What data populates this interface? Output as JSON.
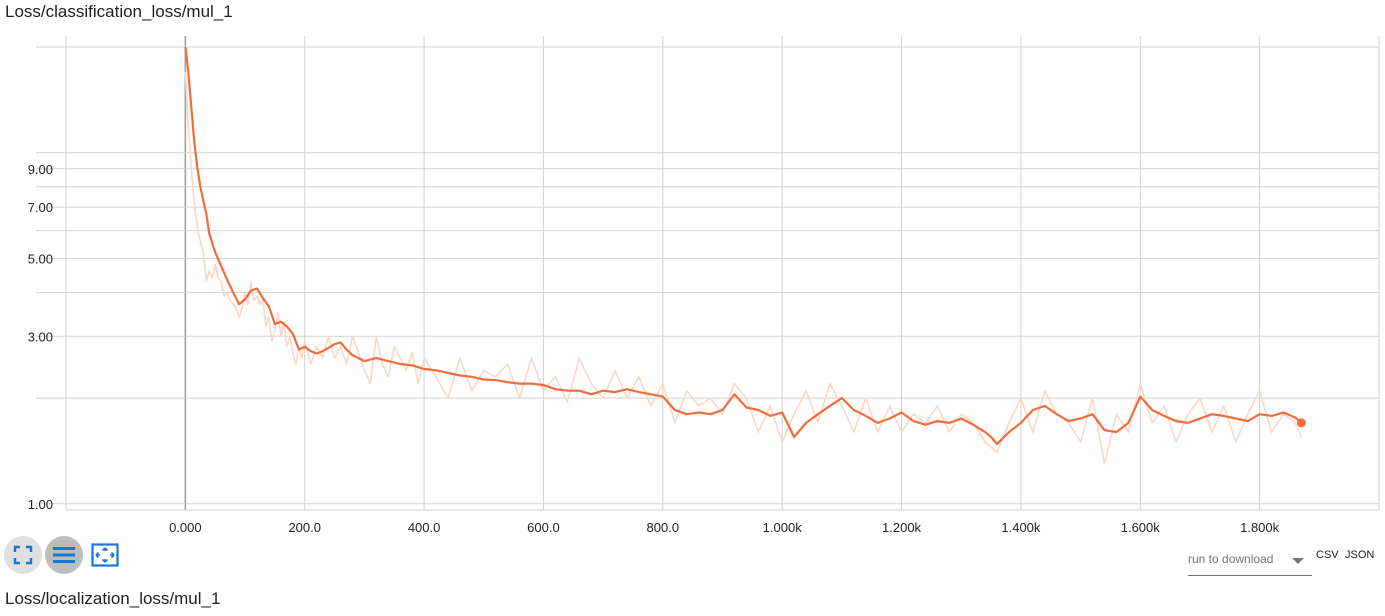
{
  "cards": {
    "classification_title": "Loss/classification_loss/mul_1",
    "localization_title": "Loss/localization_loss/mul_1"
  },
  "controls": {
    "expand_icon": "fullscreen-icon",
    "log_scale_icon": "list-lines-icon",
    "fit_domain_icon": "fit-to-data-icon",
    "download_placeholder": "run to download",
    "csv_label": "CSV",
    "json_label": "JSON"
  },
  "colors": {
    "line": "#f06c3c",
    "raw_line": "#fcd7c6",
    "grid": "#d2d2d2",
    "axis": "#9e9e9e",
    "icon_blue": "#1976d2"
  },
  "chart_data": {
    "type": "line",
    "title": "Loss/classification_loss/mul_1",
    "xlabel": "",
    "ylabel": "",
    "y_scale": "log",
    "xlim": [
      -200,
      2000
    ],
    "ylim": [
      0.96,
      21.5
    ],
    "grid": true,
    "x_ticks": [
      {
        "value": 0,
        "label": "0.000"
      },
      {
        "value": 200,
        "label": "200.0"
      },
      {
        "value": 400,
        "label": "400.0"
      },
      {
        "value": 600,
        "label": "600.0"
      },
      {
        "value": 800,
        "label": "800.0"
      },
      {
        "value": 1000,
        "label": "1.000k"
      },
      {
        "value": 1200,
        "label": "1.200k"
      },
      {
        "value": 1400,
        "label": "1.400k"
      },
      {
        "value": 1600,
        "label": "1.600k"
      },
      {
        "value": 1800,
        "label": "1.800k"
      }
    ],
    "y_ticks": [
      {
        "value": 1,
        "label": "1.00"
      },
      {
        "value": 3,
        "label": "3.00"
      },
      {
        "value": 5,
        "label": "5.00"
      },
      {
        "value": 7,
        "label": "7.00"
      },
      {
        "value": 9,
        "label": "9.00"
      }
    ],
    "y_minor_grid": [
      2,
      4,
      6,
      8,
      10,
      20
    ],
    "series": [
      {
        "smoothed": true,
        "x": [
          0,
          5,
          10,
          15,
          20,
          25,
          30,
          35,
          40,
          50,
          60,
          70,
          80,
          90,
          100,
          110,
          120,
          130,
          140,
          150,
          160,
          170,
          180,
          190,
          200,
          210,
          220,
          230,
          240,
          250,
          260,
          270,
          280,
          290,
          300,
          320,
          340,
          360,
          380,
          400,
          420,
          440,
          460,
          480,
          500,
          520,
          540,
          560,
          580,
          600,
          620,
          640,
          660,
          680,
          700,
          720,
          740,
          760,
          780,
          800,
          820,
          840,
          860,
          880,
          900,
          920,
          940,
          960,
          980,
          1000,
          1020,
          1040,
          1060,
          1080,
          1100,
          1120,
          1140,
          1160,
          1180,
          1200,
          1220,
          1240,
          1260,
          1280,
          1300,
          1320,
          1340,
          1350,
          1360,
          1380,
          1400,
          1420,
          1440,
          1460,
          1480,
          1500,
          1520,
          1540,
          1560,
          1580,
          1600,
          1620,
          1640,
          1660,
          1680,
          1700,
          1720,
          1740,
          1760,
          1780,
          1800,
          1820,
          1840,
          1860,
          1870
        ],
        "values": [
          20.0,
          17.0,
          13.5,
          10.7,
          9.1,
          8.0,
          7.3,
          6.7,
          5.9,
          5.2,
          4.75,
          4.35,
          4.0,
          3.7,
          3.82,
          4.05,
          4.1,
          3.85,
          3.65,
          3.25,
          3.3,
          3.2,
          3.05,
          2.75,
          2.8,
          2.72,
          2.68,
          2.72,
          2.78,
          2.85,
          2.88,
          2.75,
          2.65,
          2.6,
          2.55,
          2.6,
          2.55,
          2.5,
          2.48,
          2.42,
          2.4,
          2.36,
          2.32,
          2.3,
          2.26,
          2.25,
          2.22,
          2.2,
          2.2,
          2.18,
          2.12,
          2.1,
          2.1,
          2.05,
          2.1,
          2.08,
          2.12,
          2.08,
          2.05,
          2.02,
          1.85,
          1.8,
          1.82,
          1.8,
          1.85,
          2.05,
          1.88,
          1.85,
          1.78,
          1.82,
          1.55,
          1.7,
          1.8,
          1.9,
          2.0,
          1.85,
          1.78,
          1.7,
          1.75,
          1.82,
          1.72,
          1.68,
          1.72,
          1.7,
          1.75,
          1.68,
          1.6,
          1.55,
          1.48,
          1.6,
          1.7,
          1.85,
          1.9,
          1.8,
          1.72,
          1.75,
          1.8,
          1.62,
          1.6,
          1.7,
          2.02,
          1.85,
          1.78,
          1.72,
          1.7,
          1.75,
          1.8,
          1.78,
          1.75,
          1.72,
          1.8,
          1.78,
          1.82,
          1.76,
          1.7
        ],
        "final_point": {
          "x": 1870,
          "y": 1.7
        }
      },
      {
        "smoothed": false,
        "x": [
          0,
          5,
          10,
          15,
          20,
          25,
          30,
          35,
          40,
          45,
          50,
          55,
          60,
          65,
          70,
          75,
          80,
          85,
          90,
          95,
          100,
          105,
          110,
          115,
          120,
          125,
          130,
          135,
          140,
          145,
          150,
          155,
          160,
          165,
          170,
          175,
          180,
          185,
          190,
          195,
          200,
          210,
          220,
          230,
          240,
          250,
          260,
          270,
          280,
          290,
          300,
          310,
          320,
          330,
          340,
          350,
          360,
          370,
          380,
          390,
          400,
          420,
          440,
          460,
          480,
          500,
          520,
          540,
          560,
          580,
          600,
          620,
          640,
          660,
          680,
          700,
          720,
          740,
          760,
          780,
          800,
          820,
          840,
          860,
          880,
          900,
          920,
          940,
          960,
          980,
          1000,
          1020,
          1040,
          1060,
          1080,
          1100,
          1120,
          1140,
          1160,
          1180,
          1200,
          1220,
          1240,
          1260,
          1280,
          1300,
          1320,
          1340,
          1360,
          1380,
          1400,
          1420,
          1440,
          1460,
          1480,
          1500,
          1520,
          1540,
          1560,
          1580,
          1600,
          1620,
          1640,
          1660,
          1680,
          1700,
          1720,
          1740,
          1760,
          1780,
          1800,
          1820,
          1840,
          1860,
          1870
        ],
        "values": [
          17.0,
          12.0,
          9.0,
          7.2,
          6.1,
          5.6,
          5.2,
          4.3,
          4.6,
          4.4,
          4.8,
          4.4,
          4.3,
          3.9,
          4.0,
          3.8,
          3.7,
          3.6,
          3.4,
          3.6,
          4.0,
          3.7,
          4.3,
          3.8,
          3.9,
          3.7,
          3.8,
          3.2,
          3.4,
          2.9,
          3.1,
          3.5,
          3.0,
          3.3,
          2.8,
          3.0,
          2.7,
          2.5,
          2.8,
          2.6,
          2.9,
          2.5,
          2.8,
          2.6,
          3.0,
          2.6,
          2.8,
          2.5,
          3.0,
          2.7,
          2.4,
          2.2,
          3.0,
          2.5,
          2.3,
          2.8,
          2.6,
          2.4,
          2.7,
          2.2,
          2.6,
          2.3,
          2.0,
          2.6,
          2.1,
          2.4,
          2.3,
          2.5,
          2.0,
          2.6,
          2.1,
          2.3,
          1.95,
          2.6,
          2.2,
          2.0,
          2.4,
          2.0,
          2.3,
          1.9,
          2.2,
          1.7,
          2.1,
          1.9,
          2.0,
          1.8,
          2.2,
          2.0,
          1.6,
          1.9,
          1.5,
          1.8,
          2.1,
          1.7,
          2.2,
          1.9,
          1.6,
          2.0,
          1.6,
          1.9,
          1.6,
          1.8,
          1.7,
          1.9,
          1.6,
          1.8,
          1.7,
          1.5,
          1.4,
          1.7,
          2.0,
          1.6,
          2.1,
          1.8,
          1.7,
          1.5,
          2.0,
          1.3,
          1.8,
          1.6,
          2.2,
          1.7,
          1.9,
          1.5,
          1.8,
          2.0,
          1.6,
          1.9,
          1.5,
          1.8,
          2.1,
          1.6,
          1.8,
          1.7,
          1.55
        ],
        "final_point": null
      }
    ]
  }
}
